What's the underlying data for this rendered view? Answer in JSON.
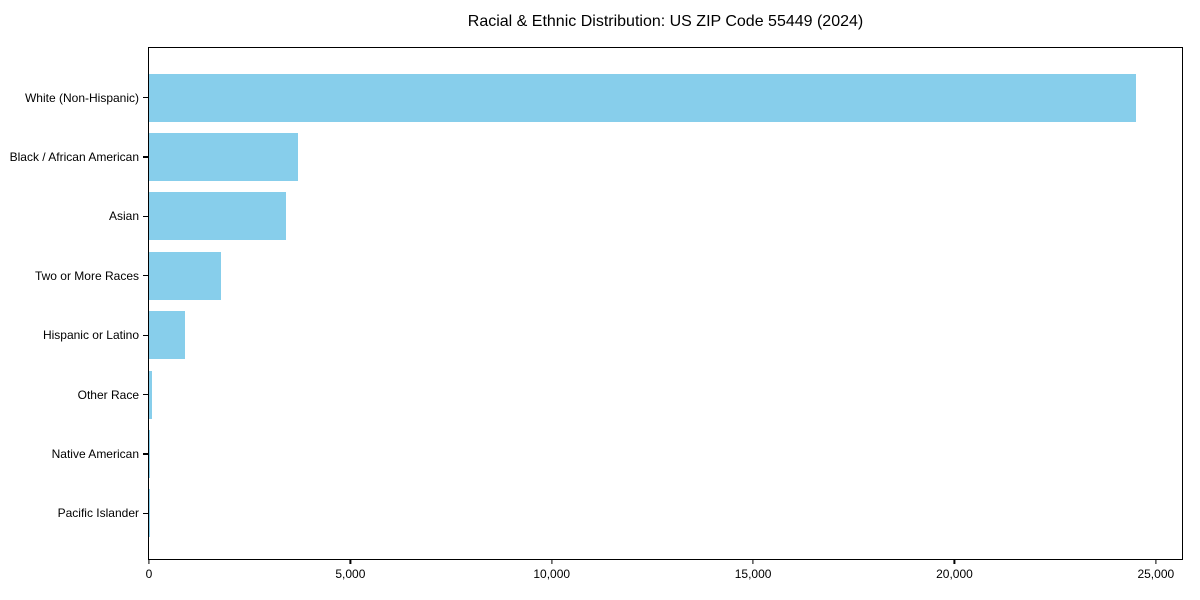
{
  "chart_data": {
    "type": "bar",
    "orientation": "horizontal",
    "title": "Racial & Ethnic Distribution: US ZIP Code 55449 (2024)",
    "categories": [
      "White (Non-Hispanic)",
      "Black / African American",
      "Asian",
      "Two or More Races",
      "Hispanic or Latino",
      "Other Race",
      "Native American",
      "Pacific Islander"
    ],
    "values": [
      24500,
      3700,
      3400,
      1800,
      900,
      75,
      25,
      8
    ],
    "bar_color": "#87CEEB",
    "background_color": "#ffffff",
    "spine_color": "#000000",
    "xlabel": "",
    "ylabel": "",
    "xlim": [
      0,
      25650
    ],
    "x_tick_values": [
      0,
      5000,
      10000,
      15000,
      20000,
      25000
    ],
    "x_tick_labels": [
      "0",
      "5,000",
      "10,000",
      "15,000",
      "20,000",
      "25,000"
    ],
    "grid": false,
    "legend": "none"
  }
}
